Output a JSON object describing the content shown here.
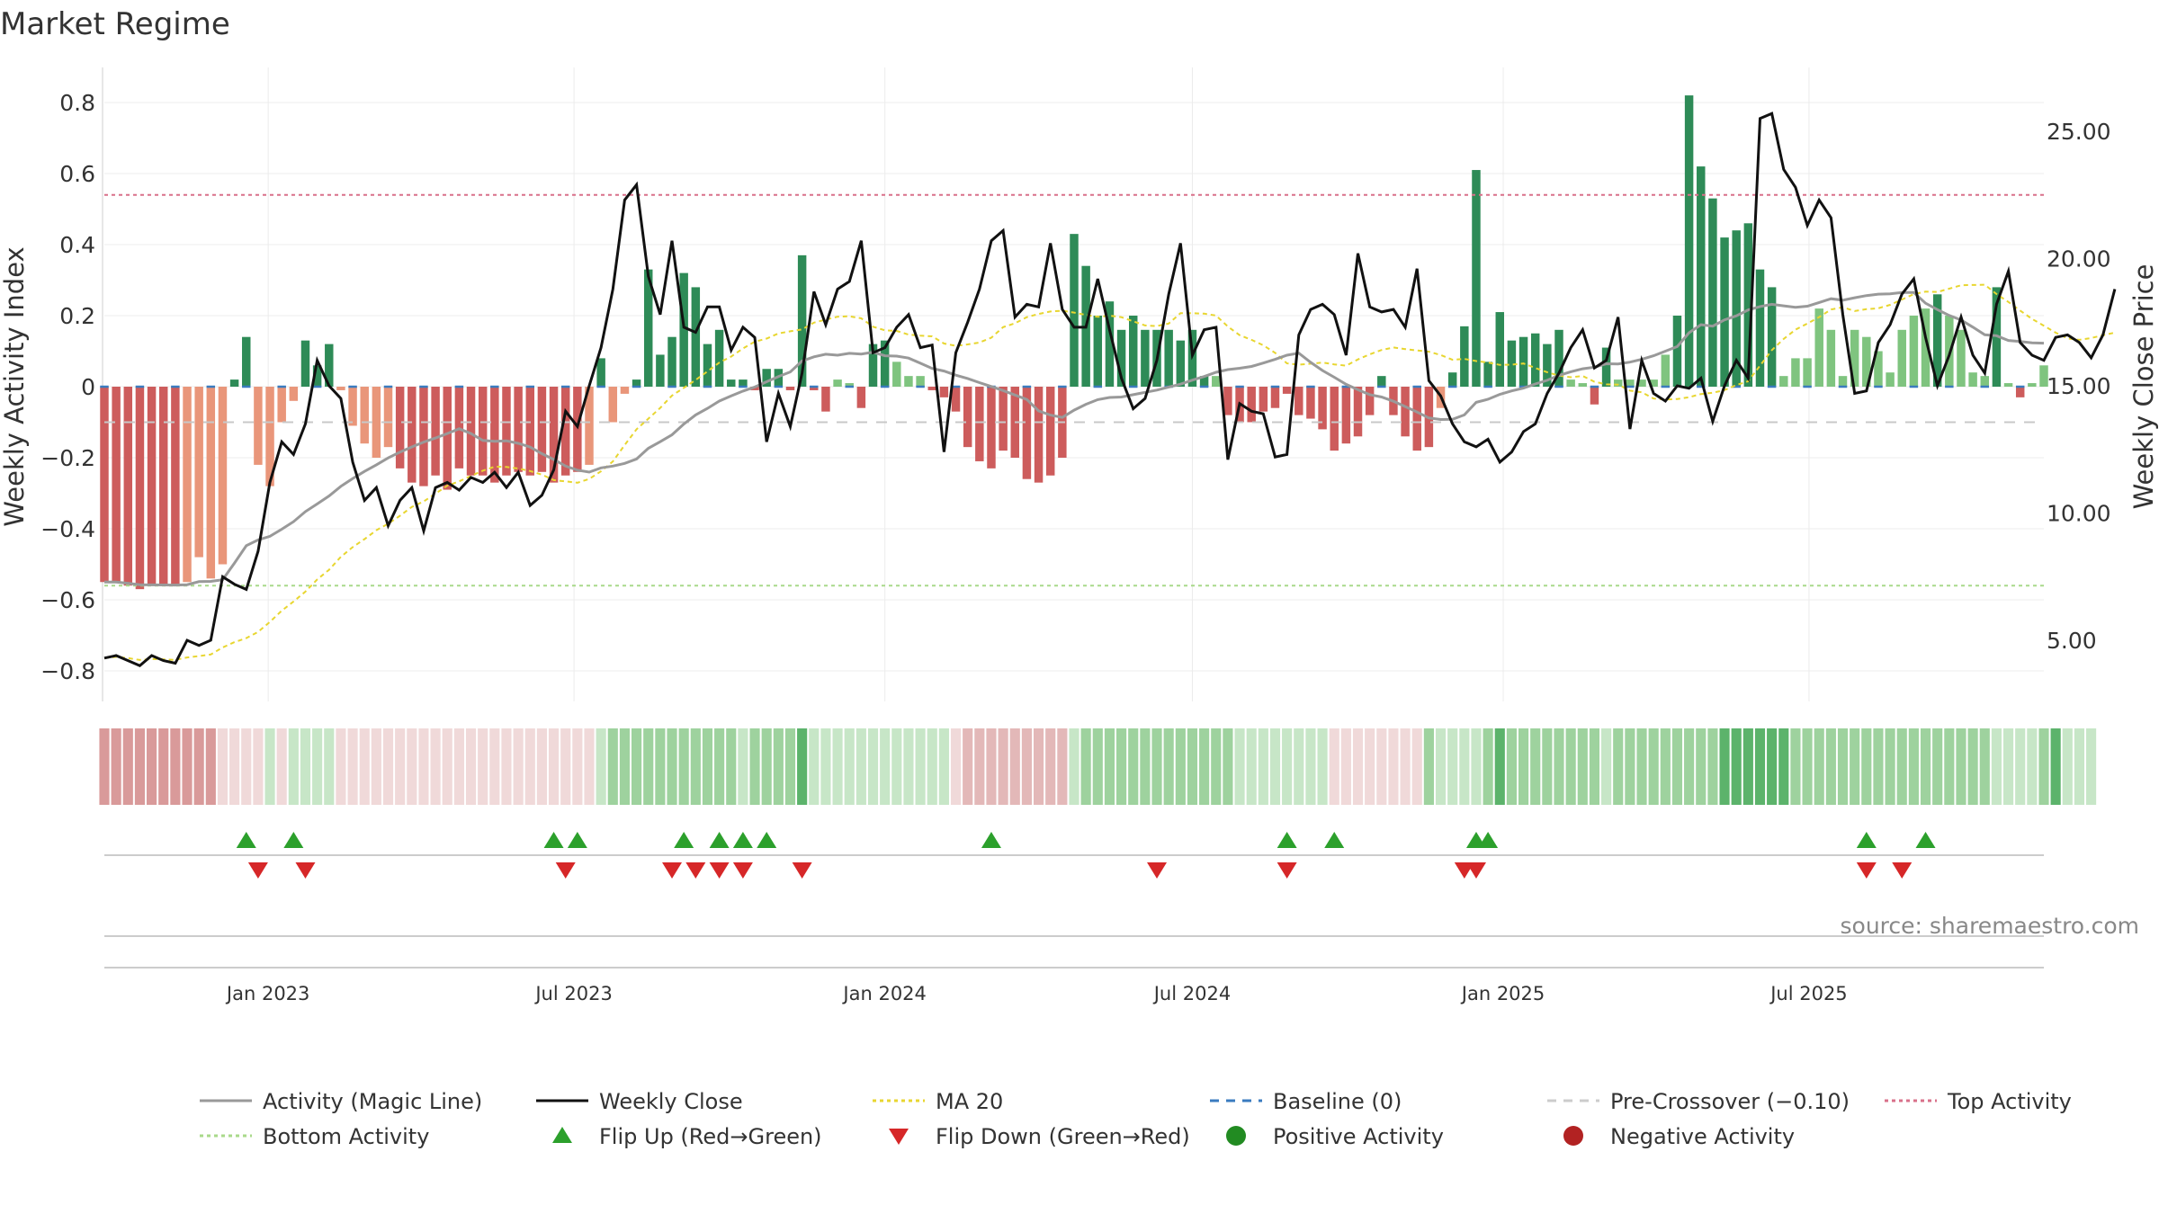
{
  "chart_data": {
    "type": "bar",
    "title": "Market Regime",
    "ylabel_left": "Weekly Activity Index",
    "ylabel_right": "Weekly Close Price",
    "ylim_left": [
      -0.88,
      0.88
    ],
    "ylim_right": [
      3.0,
      28.0
    ],
    "yticks_left": [
      "−0.8",
      "−0.6",
      "−0.4",
      "−0.2",
      "0",
      "0.2",
      "0.4",
      "0.6",
      "0.8"
    ],
    "yticks_right": [
      "5.00",
      "10.00",
      "15.00",
      "20.00",
      "25.00"
    ],
    "x_start": "2022-09-26",
    "x_step_days": 7,
    "x_ticks": [
      {
        "date": "2023-01-01",
        "label": "Jan 2023"
      },
      {
        "date": "2023-07-01",
        "label": "Jul 2023"
      },
      {
        "date": "2024-01-01",
        "label": "Jan 2024"
      },
      {
        "date": "2024-07-01",
        "label": "Jul 2024"
      },
      {
        "date": "2025-01-01",
        "label": "Jan 2025"
      },
      {
        "date": "2025-07-01",
        "label": "Jul 2025"
      }
    ],
    "activity": [
      -0.55,
      -0.55,
      -0.56,
      -0.57,
      -0.56,
      -0.56,
      -0.56,
      -0.55,
      -0.48,
      -0.54,
      -0.5,
      0.02,
      0.14,
      -0.22,
      -0.28,
      -0.1,
      -0.04,
      0.13,
      0.06,
      0.12,
      -0.01,
      -0.11,
      -0.16,
      -0.2,
      -0.17,
      -0.23,
      -0.27,
      -0.28,
      -0.25,
      -0.29,
      -0.23,
      -0.25,
      -0.25,
      -0.27,
      -0.25,
      -0.24,
      -0.25,
      -0.24,
      -0.27,
      -0.25,
      -0.24,
      -0.22,
      0.08,
      -0.1,
      -0.02,
      0.02,
      0.33,
      0.09,
      0.14,
      0.32,
      0.28,
      0.12,
      0.16,
      0.02,
      0.02,
      -0.01,
      0.05,
      0.05,
      -0.01,
      0.37,
      -0.01,
      -0.07,
      0.02,
      0.01,
      -0.06,
      0.12,
      0.13,
      0.07,
      0.03,
      0.03,
      -0.01,
      -0.03,
      -0.07,
      -0.17,
      -0.21,
      -0.23,
      -0.18,
      -0.2,
      -0.26,
      -0.27,
      -0.25,
      -0.2,
      0.43,
      0.34,
      0.2,
      0.24,
      0.16,
      0.2,
      0.16,
      0.16,
      0.16,
      0.13,
      0.16,
      0.03,
      0.03,
      -0.08,
      -0.1,
      -0.1,
      -0.07,
      -0.06,
      -0.02,
      -0.08,
      -0.09,
      -0.12,
      -0.18,
      -0.16,
      -0.14,
      -0.08,
      0.03,
      -0.08,
      -0.14,
      -0.18,
      -0.17,
      -0.06,
      0.04,
      0.17,
      0.61,
      0.07,
      0.21,
      0.13,
      0.14,
      0.15,
      0.12,
      0.16,
      0.02,
      0.01,
      -0.05,
      0.11,
      0.02,
      0.02,
      0.02,
      0.02,
      0.09,
      0.2,
      0.82,
      0.62,
      0.53,
      0.42,
      0.44,
      0.46,
      0.33,
      0.28,
      0.03,
      0.08,
      0.08,
      0.22,
      0.16,
      0.03,
      0.16,
      0.14,
      0.1,
      0.04,
      0.16,
      0.2,
      0.22,
      0.26,
      0.2,
      0.16,
      0.04,
      0.03,
      0.28,
      0.01,
      -0.03,
      0.01,
      0.06
    ],
    "weekly_close": [
      4.3,
      4.4,
      4.2,
      4.0,
      4.4,
      4.2,
      4.1,
      5.0,
      4.8,
      5.0,
      7.5,
      7.2,
      7.0,
      8.5,
      11.2,
      12.8,
      12.3,
      13.5,
      16.0,
      15.0,
      14.5,
      12.0,
      10.5,
      11.0,
      9.5,
      10.5,
      11.0,
      9.3,
      11.0,
      11.2,
      10.9,
      11.4,
      11.2,
      11.6,
      11.0,
      11.6,
      10.3,
      10.7,
      11.7,
      14.0,
      13.4,
      15.0,
      16.5,
      18.8,
      22.3,
      22.9,
      19.3,
      17.8,
      20.7,
      17.3,
      17.1,
      18.1,
      18.1,
      16.4,
      17.3,
      16.9,
      12.8,
      14.7,
      13.4,
      15.5,
      18.7,
      17.4,
      18.8,
      19.1,
      20.7,
      16.3,
      16.5,
      17.3,
      17.8,
      16.5,
      16.6,
      12.4,
      16.3,
      17.5,
      18.8,
      20.7,
      21.1,
      17.7,
      18.2,
      18.1,
      20.6,
      18.0,
      17.3,
      17.3,
      19.2,
      17.2,
      15.3,
      14.1,
      14.5,
      16.0,
      18.6,
      20.6,
      16.2,
      17.2,
      17.3,
      12.1,
      14.3,
      14.0,
      13.9,
      12.2,
      12.3,
      17.0,
      18.0,
      18.2,
      17.8,
      16.2,
      20.2,
      18.1,
      17.9,
      18.0,
      17.3,
      19.6,
      15.2,
      14.6,
      13.5,
      12.8,
      12.6,
      12.9,
      12.0,
      12.4,
      13.2,
      13.5,
      14.7,
      15.5,
      16.5,
      17.2,
      15.7,
      16.0,
      17.7,
      13.3,
      16.0,
      14.7,
      14.4,
      15.0,
      14.9,
      15.3,
      13.6,
      15.0,
      16.0,
      15.3,
      25.5,
      25.7,
      23.5,
      22.8,
      21.3,
      22.3,
      21.6,
      17.8,
      14.7,
      14.8,
      16.7,
      17.4,
      18.6,
      19.2,
      16.9,
      15.0,
      16.2,
      17.7,
      16.2,
      15.5,
      18.2,
      19.5,
      16.7,
      16.2,
      16.0,
      16.9,
      17.0,
      16.7,
      16.1,
      17.0,
      18.8
    ],
    "regime_band_levels": [
      1,
      1,
      1,
      1,
      1,
      1,
      1,
      1,
      1,
      1,
      3,
      3,
      3,
      3,
      4,
      3,
      4,
      4,
      4,
      4,
      3,
      3,
      3,
      3,
      3,
      3,
      3,
      3,
      3,
      3,
      3,
      3,
      3,
      3,
      3,
      3,
      3,
      3,
      3,
      3,
      3,
      3,
      4,
      5,
      5,
      5,
      5,
      5,
      5,
      5,
      5,
      5,
      5,
      5,
      4,
      5,
      5,
      5,
      5,
      6,
      4,
      4,
      4,
      4,
      4,
      4,
      4,
      4,
      4,
      4,
      4,
      4,
      3,
      2,
      2,
      2,
      2,
      2,
      2,
      2,
      2,
      2,
      4,
      5,
      5,
      5,
      5,
      5,
      5,
      5,
      5,
      5,
      5,
      5,
      5,
      5,
      4,
      4,
      4,
      4,
      4,
      4,
      4,
      4,
      3,
      3,
      3,
      3,
      3,
      3,
      3,
      3,
      5,
      4,
      4,
      4,
      4,
      5,
      6,
      5,
      5,
      5,
      5,
      5,
      5,
      5,
      5,
      4,
      5,
      5,
      5,
      5,
      5,
      5,
      5,
      5,
      5,
      6,
      6,
      6,
      6,
      6,
      6,
      5,
      5,
      5,
      5,
      5,
      5,
      5,
      5,
      5,
      5,
      5,
      5,
      5,
      5,
      5,
      5,
      5,
      4,
      4,
      4,
      4,
      5,
      6,
      4,
      4,
      4
    ],
    "flips_up": [
      "2022-12-19",
      "2023-01-16",
      "2023-06-19",
      "2023-07-03",
      "2023-09-04",
      "2023-09-25",
      "2023-10-09",
      "2023-10-23",
      "2024-03-04",
      "2024-08-26",
      "2024-09-23",
      "2024-12-16",
      "2024-12-23",
      "2025-08-04",
      "2025-09-08"
    ],
    "flips_down": [
      "2022-12-26",
      "2023-01-23",
      "2023-06-26",
      "2023-08-28",
      "2023-09-11",
      "2023-09-25",
      "2023-10-09",
      "2023-11-13",
      "2024-06-10",
      "2024-08-26",
      "2024-12-09",
      "2024-12-16",
      "2025-08-04",
      "2025-08-25"
    ],
    "reference_lines": {
      "baseline": 0,
      "pre_crossover": -0.1,
      "top_activity": 0.54,
      "bottom_activity": -0.56
    },
    "source": "source: sharemaestro.com",
    "legend": [
      {
        "label": "Activity (Magic Line)",
        "kind": "line",
        "color": "#999999",
        "dash": ""
      },
      {
        "label": "Weekly Close",
        "kind": "line",
        "color": "#111111",
        "dash": ""
      },
      {
        "label": "MA 20",
        "kind": "line",
        "color": "#e8d630",
        "dash": "4,4"
      },
      {
        "label": "Baseline (0)",
        "kind": "line",
        "color": "#3a7bbf",
        "dash": "10,8"
      },
      {
        "label": "Pre-Crossover (−0.10)",
        "kind": "line",
        "color": "#cccccc",
        "dash": "10,8"
      },
      {
        "label": "Top Activity",
        "kind": "line",
        "color": "#d9708a",
        "dash": "4,4"
      },
      {
        "label": "Bottom Activity",
        "kind": "line",
        "color": "#a9d98a",
        "dash": "4,4"
      },
      {
        "label": "Flip Up (Red→Green)",
        "kind": "tri-up",
        "color": "#2ca02c"
      },
      {
        "label": "Flip Down (Green→Red)",
        "kind": "tri-down",
        "color": "#d62728"
      },
      {
        "label": "Positive Activity",
        "kind": "dot",
        "color": "#228b22"
      },
      {
        "label": "Negative Activity",
        "kind": "dot",
        "color": "#b22222"
      }
    ],
    "colors": {
      "pos_strong": "#2e8b57",
      "pos_light": "#7fc47f",
      "neg_strong": "#cd5c5c",
      "neg_light": "#e9967a",
      "band_levels": [
        "#c96d6d",
        "#d99a9a",
        "#e3b8b8",
        "#f0d9d9",
        "#c7e6c7",
        "#9ed29e",
        "#5cb36b"
      ]
    },
    "grid": true
  }
}
